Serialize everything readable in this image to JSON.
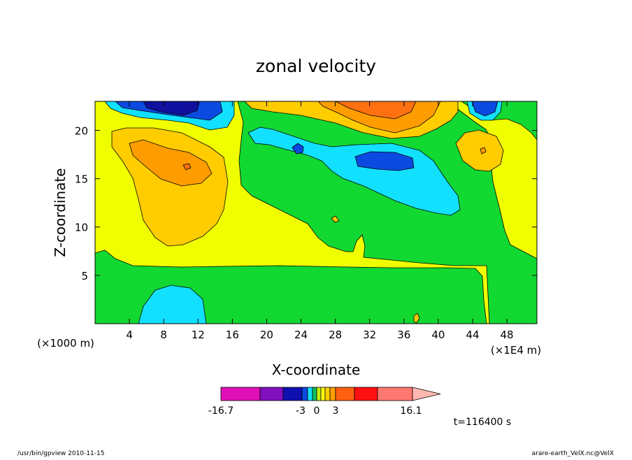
{
  "chart_data": {
    "type": "heatmap",
    "title": "zonal velocity",
    "xlabel": "X-coordinate",
    "ylabel": "Z-coordinate",
    "x_unit_label": "(×1E4 m)",
    "z_unit_label": "(×1000 m)",
    "x_ticks": [
      4,
      8,
      12,
      16,
      20,
      24,
      28,
      32,
      36,
      40,
      44,
      48
    ],
    "z_ticks": [
      5,
      10,
      15,
      20
    ],
    "xlim": [
      0,
      51.5
    ],
    "zlim": [
      0,
      23
    ],
    "time_label": "t=116400 s",
    "colorbar": {
      "min_label": "-16.7",
      "max_label": "16.1",
      "mid_labels": [
        "-3",
        "0",
        "3"
      ],
      "colors": [
        "#e010b8",
        "#8010c0",
        "#1010b0",
        "#0a4ae0",
        "#12e0ff",
        "#12c060",
        "#c0f010",
        "#ffff10",
        "#ffd000",
        "#ffa000",
        "#ff6010",
        "#ff1010",
        "#ff7870",
        "#ffb8b0"
      ]
    },
    "level_colors": {
      "strong_negative": "#12109e",
      "negative": "#0a4ae0",
      "weak_negative": "#12e0ff",
      "near_zero_negative": "#12d832",
      "near_zero_positive": "#f0ff00",
      "weak_positive": "#ffcc00",
      "positive": "#ff9d00",
      "strong_positive": "#ff7010"
    }
  },
  "footer": {
    "left": "/usr/bin/gpview   2010-11-15",
    "right": "arare-earth_VelX.nc@VelX"
  }
}
